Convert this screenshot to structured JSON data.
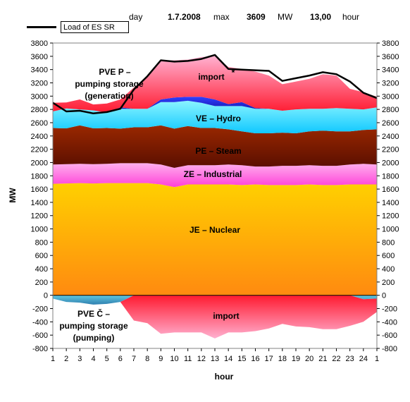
{
  "header": {
    "day_label": "day",
    "date": "1.7.2008",
    "max_label": "max",
    "max_value": "3609",
    "unit": "MW",
    "hour_value": "13,00",
    "hour_label": "hour"
  },
  "legend": {
    "load_label": "Load of ES SR"
  },
  "colors": {
    "nuclear": "#ffb400",
    "industrial": "#ff66cc",
    "steam": "#7a1a00",
    "hydro": "#22d8f0",
    "storage_gen": "#1020c8",
    "import": "#ff5a7a",
    "pumping": "#40a0c8",
    "load_line": "#000000"
  },
  "chart_data": {
    "type": "area",
    "xlabel": "hour",
    "ylabel": "MW",
    "ylim": [
      -800,
      3800
    ],
    "yticks": [
      -800,
      -600,
      -400,
      -200,
      0,
      200,
      400,
      600,
      800,
      1000,
      1200,
      1400,
      1600,
      1800,
      2000,
      2200,
      2400,
      2600,
      2800,
      3000,
      3200,
      3400,
      3600,
      3800
    ],
    "x_labels": [
      "1",
      "2",
      "3",
      "4",
      "5",
      "6",
      "7",
      "8",
      "9",
      "10",
      "11",
      "12",
      "13",
      "14",
      "15",
      "16",
      "17",
      "18",
      "19",
      "20",
      "21",
      "22",
      "23",
      "24",
      "1"
    ],
    "labels": {
      "nuclear": "JE – Nuclear",
      "industrial": "ZE – Industrial",
      "steam": "PE – Steam",
      "hydro": "VE – Hydro",
      "storage_gen_1": "PVE P –",
      "storage_gen_2": "pumping storage",
      "storage_gen_3": "(generation)",
      "import_top": "import",
      "import_star": "*",
      "import_bottom": "import",
      "pumping_1": "PVE Č –",
      "pumping_2": "pumping storage",
      "pumping_3": "(pumping)"
    },
    "series": [
      {
        "name": "JE – Nuclear",
        "values": [
          1680,
          1685,
          1690,
          1685,
          1690,
          1690,
          1690,
          1690,
          1670,
          1630,
          1670,
          1670,
          1670,
          1670,
          1660,
          1670,
          1660,
          1660,
          1660,
          1670,
          1660,
          1660,
          1670,
          1670,
          1670
        ]
      },
      {
        "name": "ZE – Industrial",
        "values": [
          290,
          290,
          290,
          290,
          290,
          300,
          300,
          300,
          300,
          290,
          290,
          290,
          290,
          300,
          300,
          270,
          280,
          290,
          290,
          290,
          290,
          290,
          300,
          310,
          300
        ]
      },
      {
        "name": "PE – Steam",
        "values": [
          550,
          540,
          580,
          540,
          540,
          520,
          540,
          540,
          590,
          590,
          590,
          560,
          560,
          530,
          510,
          500,
          500,
          500,
          490,
          510,
          530,
          520,
          500,
          510,
          530
        ]
      },
      {
        "name": "VE – Hydro",
        "values": [
          250,
          300,
          240,
          270,
          230,
          300,
          280,
          280,
          350,
          400,
          380,
          380,
          330,
          350,
          380,
          370,
          370,
          330,
          360,
          340,
          330,
          350,
          340,
          310,
          330
        ]
      },
      {
        "name": "PVE P – pumping storage (generation)",
        "values": [
          0,
          0,
          0,
          0,
          0,
          20,
          0,
          0,
          40,
          70,
          60,
          90,
          100,
          30,
          60,
          10,
          0,
          0,
          0,
          0,
          0,
          0,
          0,
          0,
          0
        ]
      },
      {
        "name": "import",
        "values": [
          130,
          90,
          150,
          90,
          140,
          120,
          320,
          490,
          590,
          560,
          560,
          600,
          650,
          560,
          500,
          550,
          500,
          400,
          420,
          450,
          520,
          490,
          300,
          260,
          160
        ]
      },
      {
        "name": "PVE Č – pumping storage (pumping)",
        "values": [
          -50,
          -100,
          -110,
          -140,
          -130,
          -100,
          0,
          0,
          0,
          0,
          0,
          0,
          0,
          0,
          0,
          0,
          0,
          0,
          0,
          0,
          0,
          0,
          0,
          -60,
          -50
        ]
      },
      {
        "name": "import",
        "values": [
          0,
          0,
          0,
          0,
          0,
          0,
          -380,
          -420,
          -580,
          -560,
          -560,
          -560,
          -650,
          -560,
          -560,
          -540,
          -500,
          -430,
          -470,
          -480,
          -510,
          -510,
          -460,
          -340,
          -200
        ]
      },
      {
        "name": "Load of ES SR",
        "values": [
          2900,
          2770,
          2780,
          2740,
          2760,
          2810,
          3100,
          3300,
          3540,
          3520,
          3530,
          3560,
          3620,
          3410,
          3400,
          3390,
          3380,
          3230,
          3270,
          3310,
          3360,
          3330,
          3220,
          3050,
          2970
        ]
      }
    ]
  }
}
